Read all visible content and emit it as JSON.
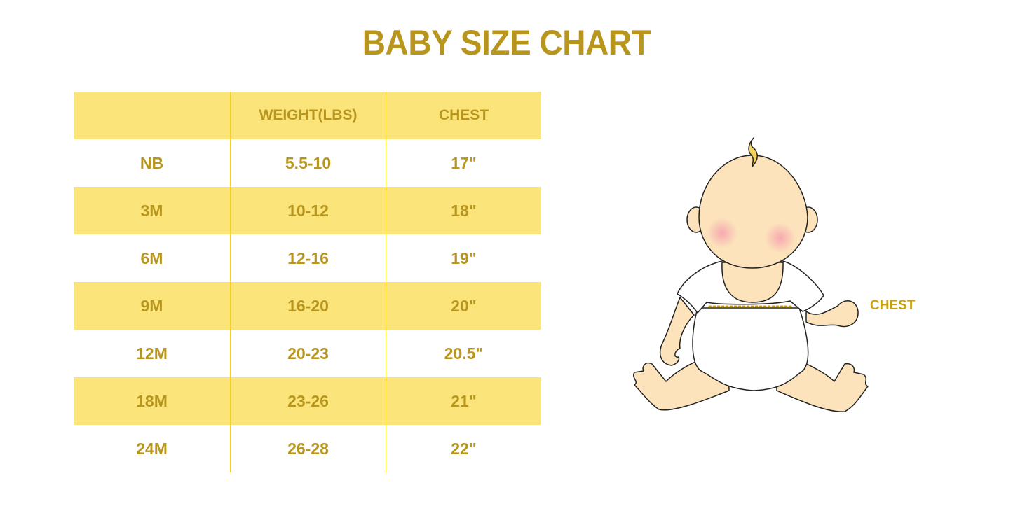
{
  "title": "BABY SIZE CHART",
  "table": {
    "headers": [
      "",
      "WEIGHT(LBS)",
      "CHEST"
    ],
    "rows": [
      [
        "NB",
        "5.5-10",
        "17\""
      ],
      [
        "3M",
        "10-12",
        "18\""
      ],
      [
        "6M",
        "12-16",
        "19\""
      ],
      [
        "9M",
        "16-20",
        "20\""
      ],
      [
        "12M",
        "20-23",
        "20.5\""
      ],
      [
        "18M",
        "23-26",
        "21\""
      ],
      [
        "24M",
        "26-28",
        "22\""
      ]
    ]
  },
  "illustration": {
    "chest_label": "CHEST"
  },
  "colors": {
    "text": "#B8961E",
    "row_fill": "#FBE57B",
    "divider": "#F5D020",
    "skin": "#FCE3BC"
  }
}
